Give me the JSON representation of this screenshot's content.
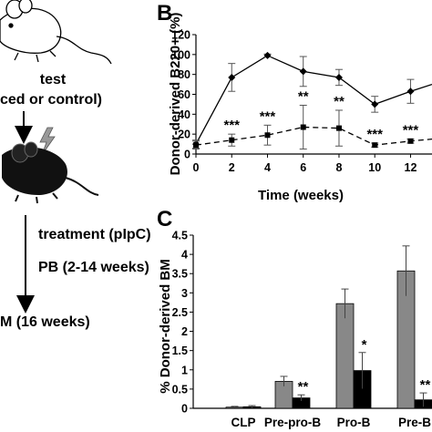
{
  "left_panel": {
    "test_label": "test",
    "group_label": "ced or control)",
    "treatment_label": "treatment (pIpC)",
    "pb_label": "PB (2-14 weeks)",
    "bm_label": "M (16 weeks)"
  },
  "chart_data": [
    {
      "type": "line",
      "panel_label": "B",
      "xlabel": "Time (weeks)",
      "ylabel": "Donor-derived B220+ (%)",
      "xlim": [
        0,
        13.2
      ],
      "ylim": [
        0,
        120
      ],
      "xticks": [
        0,
        2,
        4,
        6,
        8,
        10,
        12
      ],
      "yticks": [
        0,
        20,
        40,
        60,
        80,
        100,
        120
      ],
      "x": [
        0,
        2,
        4,
        6,
        8,
        10,
        12,
        13.2
      ],
      "series": [
        {
          "style": "solid",
          "color": "#000000",
          "values": [
            10,
            77,
            99,
            83,
            77,
            50,
            63,
            70
          ],
          "errors": [
            4,
            14,
            1.5,
            15,
            8,
            8,
            12,
            null
          ]
        },
        {
          "style": "dashed",
          "color": "#000000",
          "values": [
            9,
            14,
            19,
            27,
            26,
            9,
            13,
            15
          ],
          "errors": [
            4,
            6,
            10,
            22,
            18,
            2,
            2,
            null
          ],
          "significance": [
            "",
            "***",
            "***",
            "**",
            "**",
            "***",
            "***",
            ""
          ]
        }
      ]
    },
    {
      "type": "bar",
      "panel_label": "C",
      "ylabel": "% Donor-derived BM",
      "ylim": [
        0,
        4.5
      ],
      "yticks": [
        "0",
        "0.5",
        "1",
        "1.5",
        "2",
        "2.5",
        "3",
        "3.5",
        "4",
        "4.5"
      ],
      "categories": [
        "CLP",
        "Pre-pro-B",
        "Pro-B",
        "Pre-B"
      ],
      "series": [
        {
          "color": "#888888",
          "values": [
            0.03,
            0.7,
            2.72,
            3.57
          ],
          "errors": [
            0.02,
            0.13,
            0.38,
            0.65
          ]
        },
        {
          "color": "#000000",
          "values": [
            0.04,
            0.27,
            0.98,
            0.22
          ],
          "errors": [
            0.03,
            0.08,
            0.47,
            0.18
          ],
          "significance": [
            "",
            "**",
            "*",
            "**"
          ]
        }
      ]
    }
  ]
}
